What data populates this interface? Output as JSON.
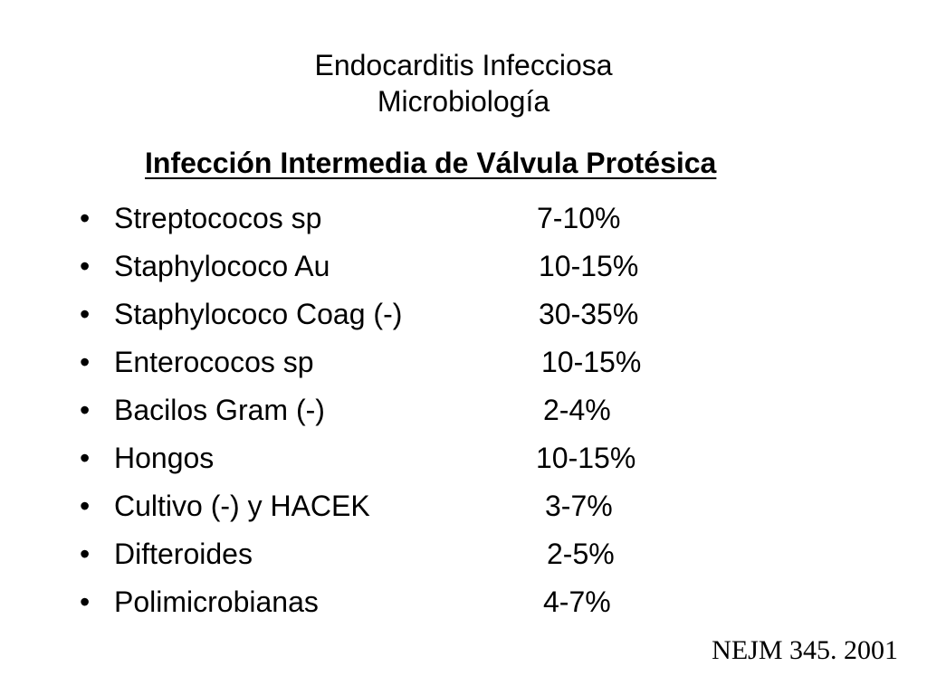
{
  "slide": {
    "title_line1": "Endocarditis Infecciosa",
    "title_line2": "Microbiología",
    "subheading": "Infección Intermedia de Válvula Protésica",
    "bullet_char": "•",
    "items": [
      {
        "label": "Streptococos sp",
        "value": "7-10%"
      },
      {
        "label": "Staphylococo Au",
        "value": "10-15%"
      },
      {
        "label": "Staphylococo Coag (-)",
        "value": "30-35%"
      },
      {
        "label": "Enterococos sp",
        "value": "10-15%"
      },
      {
        "label": "Bacilos Gram (-)",
        "value": "2-4%"
      },
      {
        "label": "Hongos",
        "value": "10-15%"
      },
      {
        "label": "Cultivo (-) y HACEK",
        "value": "3-7%"
      },
      {
        "label": "Difteroides",
        "value": "2-5%"
      },
      {
        "label": "Polimicrobianas",
        "value": "4-7%"
      }
    ],
    "source": "NEJM 345. 2001"
  }
}
